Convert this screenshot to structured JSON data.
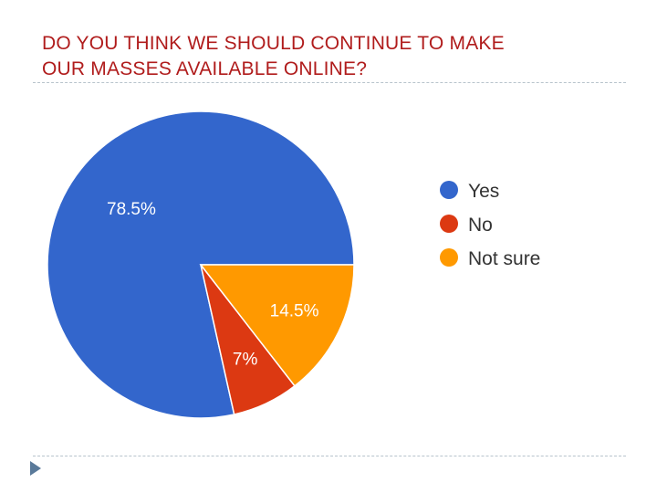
{
  "slide": {
    "title_lines": [
      "DO YOU THINK WE SHOULD CONTINUE TO MAKE",
      "OUR MASSES AVAILABLE ONLINE?"
    ]
  },
  "colors": {
    "title": "#b01c1c",
    "yes": "#3366cc",
    "no": "#dc3912",
    "not_sure": "#ff9900"
  },
  "chart_data": {
    "type": "pie",
    "title": "DO YOU THINK WE SHOULD CONTINUE TO MAKE OUR MASSES AVAILABLE ONLINE?",
    "categories": [
      "Yes",
      "No",
      "Not sure"
    ],
    "values": [
      78.5,
      7,
      14.5
    ],
    "labels": [
      "78.5%",
      "7%",
      "14.5%"
    ],
    "colors": [
      "#3366cc",
      "#dc3912",
      "#ff9900"
    ],
    "legend_position": "right",
    "start_direction": "right",
    "clockwise": false
  }
}
